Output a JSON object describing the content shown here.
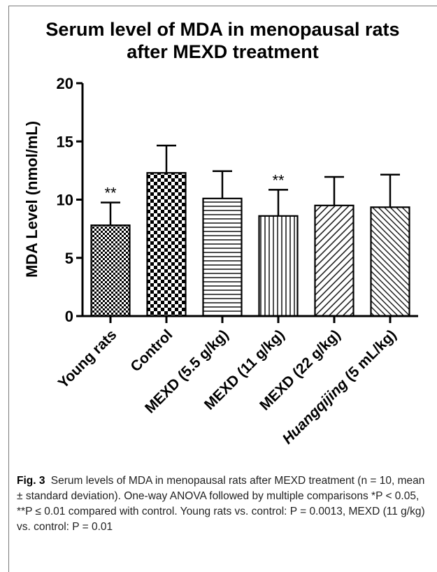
{
  "chart_data": {
    "type": "bar",
    "title": [
      "Serum level of MDA in menopausal rats",
      "after MEXD treatment"
    ],
    "ylabel": "MDA Level (nmol/mL)",
    "xlabel": "",
    "ylim": [
      0,
      20
    ],
    "yticks": [
      "0",
      "5",
      "10",
      "15",
      "20"
    ],
    "categories": [
      "Young rats",
      "Control",
      "MEXD (5.5 g/kg)",
      "MEXD (11 g/kg)",
      "MEXD (22 g/kg)",
      "Huangqijing (5 mL/kg)"
    ],
    "italic_categories": [
      "Huangqijing"
    ],
    "values": [
      7.8,
      12.3,
      10.1,
      8.6,
      9.5,
      9.35
    ],
    "error_sd": [
      1.95,
      2.35,
      2.35,
      2.25,
      2.45,
      2.8
    ],
    "significance": [
      "**",
      "",
      "",
      "**",
      "",
      ""
    ],
    "patterns": [
      "checker-fine",
      "checker-coarse",
      "horizontal-lines",
      "vertical-lines",
      "diagonal-lines",
      "diagonal-lines-dense"
    ],
    "grid": false,
    "legend": "none",
    "colors": {
      "fill": "#000000",
      "background": "#ffffff"
    }
  },
  "caption": {
    "label": "Fig. 3",
    "text": "Serum levels of MDA in menopausal rats after MEXD treatment (n = 10, mean ± standard deviation). One-way ANOVA followed by multiple comparisons *P < 0.05, **P ≤ 0.01 compared with control. Young rats vs. control: P = 0.0013, MEXD (11 g/kg) vs. control: P = 0.01"
  }
}
